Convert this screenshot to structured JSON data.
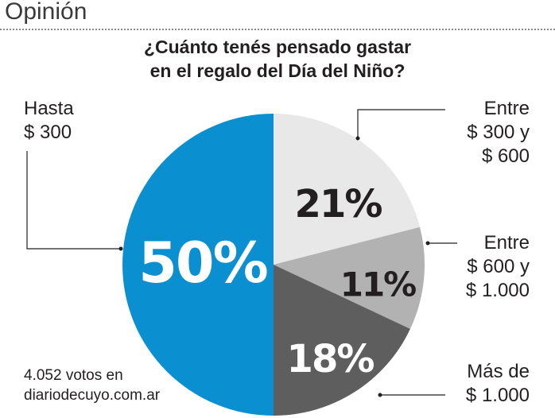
{
  "section": "Opinión",
  "chart_data": {
    "type": "pie",
    "title": [
      "¿Cuánto tenés pensado gastar",
      "en el regalo del Día del Niño?"
    ],
    "slices": [
      {
        "label": [
          "Hasta",
          "$ 300"
        ],
        "value": 50,
        "text": "50%",
        "color": "#0a8fd0"
      },
      {
        "label": [
          "Entre",
          "$ 300 y",
          "$ 600"
        ],
        "value": 21,
        "text": "21%",
        "color": "#e8e8e8"
      },
      {
        "label": [
          "Entre",
          "$ 600 y",
          "$ 1.000"
        ],
        "value": 11,
        "text": "11%",
        "color": "#b2b2b2"
      },
      {
        "label": [
          "Más de",
          "$ 1.000"
        ],
        "value": 18,
        "text": "18%",
        "color": "#5f5e5e"
      }
    ]
  },
  "source": [
    "4.052 votos en",
    "diariodecuyo.com.ar"
  ]
}
